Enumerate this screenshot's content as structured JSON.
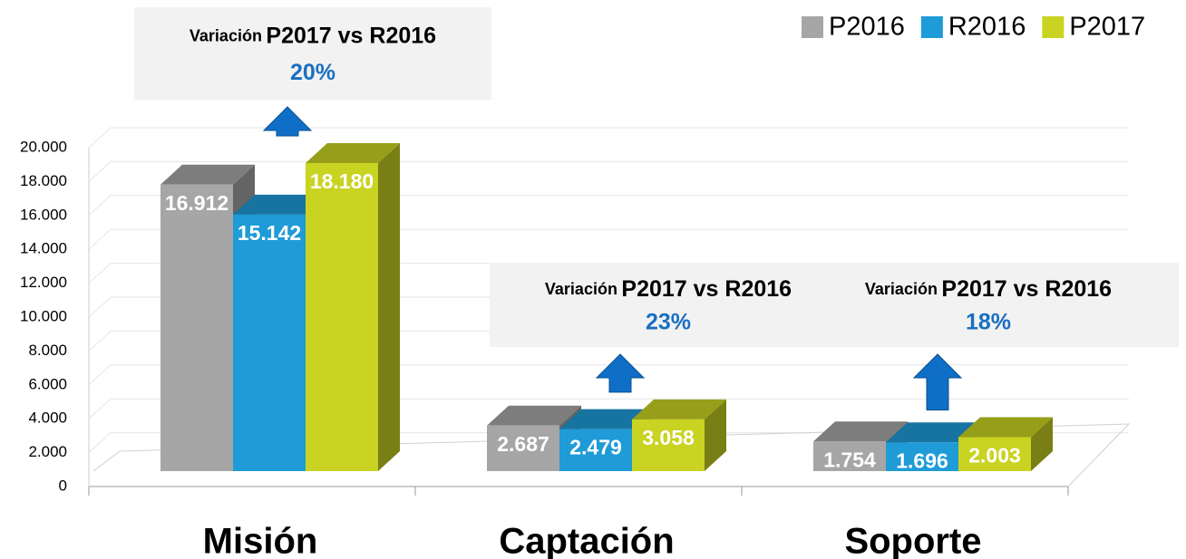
{
  "chart_data": {
    "type": "bar3d",
    "categories": [
      "Misión",
      "Captación",
      "Soporte"
    ],
    "series": [
      {
        "name": "P2016",
        "color": "#a6a6a6",
        "values": [
          16912,
          2687,
          1754
        ],
        "value_labels": [
          "16.912",
          "2.687",
          "1.754"
        ]
      },
      {
        "name": "R2016",
        "color": "#1f9bd7",
        "values": [
          15142,
          2479,
          1696
        ],
        "value_labels": [
          "15.142",
          "2.479",
          "1.696"
        ]
      },
      {
        "name": "P2017",
        "color": "#c9d321",
        "values": [
          18180,
          3058,
          2003
        ],
        "value_labels": [
          "18.180",
          "3.058",
          "2.003"
        ]
      }
    ],
    "ylim": [
      0,
      20000
    ],
    "yticks": [
      0,
      {
        "value": 2000,
        "label": "2.000"
      },
      {
        "value": 4000,
        "label": "4.000"
      },
      {
        "value": 6000,
        "label": "6.000"
      },
      {
        "value": 8000,
        "label": "8.000"
      },
      {
        "value": 10000,
        "label": "10.000"
      },
      {
        "value": 12000,
        "label": "12.000"
      },
      {
        "value": 14000,
        "label": "14.000"
      },
      {
        "value": 16000,
        "label": "16.000"
      },
      {
        "value": 18000,
        "label": "18.000"
      },
      {
        "value": 20000,
        "label": "20.000"
      }
    ],
    "grid": true,
    "legend": "top-right",
    "annotations": [
      {
        "label": "Variación",
        "text": "P2017 vs R2016",
        "value": "20%"
      },
      {
        "label": "Variación",
        "text": "P2017 vs R2016",
        "value": "23%"
      },
      {
        "label": "Variación",
        "text": "P2017 vs R2016",
        "value": "18%"
      }
    ]
  }
}
